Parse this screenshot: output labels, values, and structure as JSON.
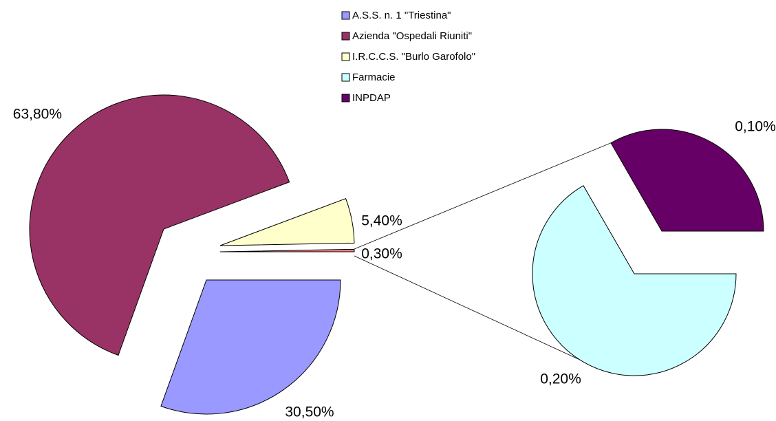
{
  "chart_data": {
    "type": "pie-of-pie",
    "categories": [
      "A.S.S. n. 1 \"Triestina\"",
      "Azienda \"Ospedali Riuniti\"",
      "I.R.C.C.S. \"Burlo Garofolo\"",
      "Farmacie",
      "INPDAP"
    ],
    "values": [
      30.5,
      63.8,
      5.4,
      0.2,
      0.1
    ],
    "value_labels": [
      "30,50%",
      "63,80%",
      "5,40%",
      "0,20%",
      "0,10%"
    ],
    "colors": [
      "#9999ff",
      "#993366",
      "#ffffcc",
      "#ccffff",
      "#660066"
    ],
    "secondary_count": 2,
    "other": {
      "value": 0.3,
      "label": "0,30%"
    },
    "legend": "top"
  }
}
